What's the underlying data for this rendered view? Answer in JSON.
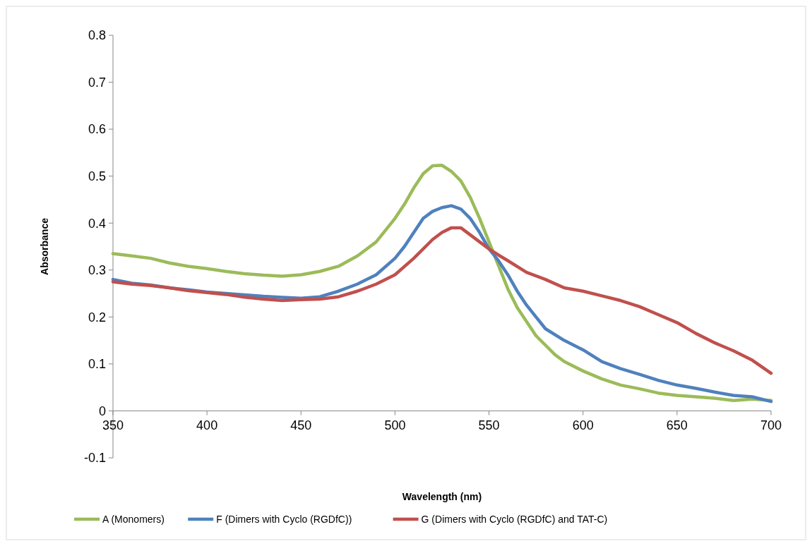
{
  "chart_data": {
    "type": "line",
    "xlabel": "Wavelength (nm)",
    "ylabel": "Absorbance",
    "xlim": [
      350,
      700
    ],
    "xticks": [
      350,
      400,
      450,
      500,
      550,
      600,
      650,
      700
    ],
    "ylim": [
      -0.1,
      0.8
    ],
    "yticks": [
      -0.1,
      0,
      0.1,
      0.2,
      0.3,
      0.4,
      0.5,
      0.6,
      0.7,
      0.8
    ],
    "grid": false,
    "legend": "bottom",
    "marker": "none",
    "line_style": "solid",
    "series": [
      {
        "name": "A (Monomers)",
        "color": "#9bbb59",
        "x": [
          350,
          360,
          370,
          380,
          390,
          400,
          410,
          420,
          430,
          440,
          450,
          460,
          470,
          480,
          490,
          500,
          505,
          510,
          515,
          520,
          525,
          530,
          535,
          540,
          545,
          550,
          555,
          560,
          565,
          570,
          575,
          580,
          585,
          590,
          600,
          610,
          620,
          630,
          640,
          650,
          660,
          670,
          680,
          690,
          700
        ],
        "values": [
          0.335,
          0.33,
          0.325,
          0.315,
          0.308,
          0.303,
          0.297,
          0.292,
          0.289,
          0.287,
          0.29,
          0.297,
          0.308,
          0.33,
          0.36,
          0.41,
          0.44,
          0.475,
          0.505,
          0.522,
          0.523,
          0.51,
          0.49,
          0.455,
          0.41,
          0.36,
          0.31,
          0.26,
          0.22,
          0.19,
          0.16,
          0.14,
          0.12,
          0.105,
          0.085,
          0.068,
          0.055,
          0.047,
          0.038,
          0.033,
          0.03,
          0.027,
          0.022,
          0.025,
          0.022
        ]
      },
      {
        "name": "F (Dimers with Cyclo (RGDfC))",
        "color": "#4f81bd",
        "x": [
          350,
          360,
          370,
          380,
          390,
          400,
          410,
          420,
          430,
          440,
          450,
          460,
          470,
          480,
          490,
          500,
          505,
          510,
          515,
          520,
          525,
          530,
          535,
          540,
          545,
          550,
          555,
          560,
          565,
          570,
          575,
          580,
          590,
          600,
          610,
          620,
          630,
          640,
          650,
          660,
          670,
          680,
          690,
          700
        ],
        "values": [
          0.28,
          0.272,
          0.268,
          0.262,
          0.258,
          0.253,
          0.25,
          0.247,
          0.244,
          0.242,
          0.24,
          0.243,
          0.255,
          0.27,
          0.29,
          0.325,
          0.35,
          0.38,
          0.41,
          0.425,
          0.433,
          0.437,
          0.43,
          0.41,
          0.38,
          0.345,
          0.32,
          0.29,
          0.255,
          0.225,
          0.2,
          0.175,
          0.15,
          0.13,
          0.105,
          0.09,
          0.078,
          0.065,
          0.055,
          0.048,
          0.04,
          0.033,
          0.03,
          0.02
        ]
      },
      {
        "name": "G (Dimers with Cyclo (RGDfC) and TAT-C)",
        "color": "#c0504d",
        "x": [
          350,
          360,
          370,
          380,
          390,
          400,
          410,
          420,
          430,
          440,
          450,
          460,
          470,
          480,
          490,
          500,
          510,
          520,
          525,
          530,
          535,
          540,
          545,
          550,
          555,
          560,
          570,
          580,
          590,
          600,
          610,
          620,
          630,
          640,
          650,
          660,
          670,
          680,
          690,
          700
        ],
        "values": [
          0.275,
          0.27,
          0.267,
          0.262,
          0.256,
          0.252,
          0.248,
          0.242,
          0.238,
          0.235,
          0.237,
          0.238,
          0.243,
          0.255,
          0.27,
          0.29,
          0.325,
          0.365,
          0.38,
          0.39,
          0.39,
          0.375,
          0.36,
          0.345,
          0.332,
          0.32,
          0.295,
          0.28,
          0.262,
          0.255,
          0.245,
          0.235,
          0.222,
          0.205,
          0.188,
          0.165,
          0.145,
          0.128,
          0.108,
          0.08
        ]
      }
    ]
  }
}
